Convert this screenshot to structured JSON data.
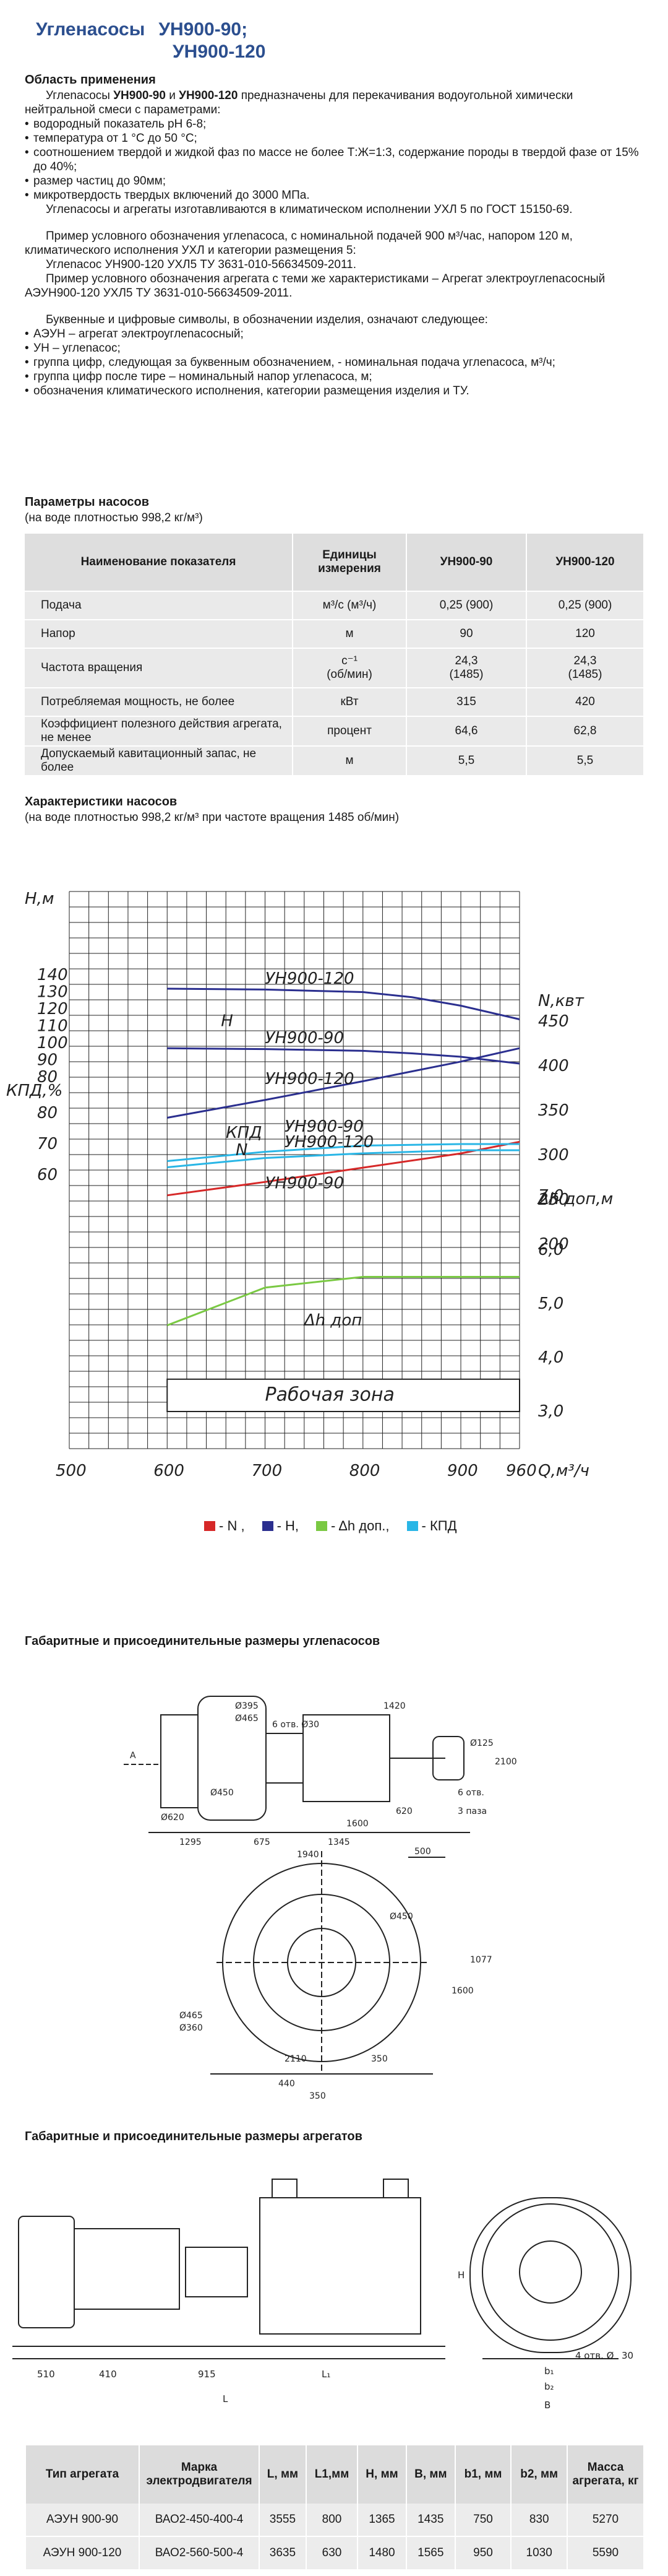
{
  "title": {
    "line1a": "Угленасосы",
    "line1b": "УН900-90;",
    "line2": "УН900-120"
  },
  "application": {
    "heading": "Область применения",
    "intro_pre": "Углеnасосы",
    "bold1": "УН900-90",
    "and": "и",
    "bold2": "УН900-120",
    "intro_post": "предназначены для перекачивания водоугольной химически нейтральной смеси с параметрами:",
    "bullets": [
      "водородный показатель pH 6-8;",
      "температура от 1 °С до 50 °С;",
      "соотношением твердой и жидкой фаз по массе не более Т:Ж=1:3, содержание породы в твердой фазе от 15% до 40%;",
      "размер частиц до 90мм;",
      "микротвердость твердых включений до 3000 МПа."
    ],
    "climate": "Углеnасосы и агрегаты изготавливаются в климатическом исполнении УХЛ 5 по ГОСТ 15150-69.",
    "example1": "Пример условного обозначения углеnасоса, с номинальной подачей 900 м³/час, напором 120 м, климатического исполнения УХЛ и категории размещения 5:",
    "example1_code": "Углеnасос УН900-120 УХЛ5 ТУ 3631-010-56634509-2011.",
    "example2": "Пример условного обозначения агрегата с теми же характеристиками – Агрегат электроуглеnасосный АЭУН900-120 УХЛ5 ТУ 3631-010-56634509-2011.",
    "symbols_intro": "Буквенные и цифровые символы, в обозначении изделия, означают следующее:",
    "symbols": [
      "АЭУН – агрегат электроуглеnасосный;",
      "УН – углеnасос;",
      "группа цифр, следующая за буквенным обозначением, - номинальная подача углеnасоса, м³/ч;",
      "группа цифр после тире – номинальный напор углеnасоса, м;",
      "обозначения климатического исполнения, категории размещения изделия и ТУ."
    ]
  },
  "params": {
    "heading": "Параметры насосов",
    "subheading": "(на воде плотностью 998,2 кг/м³)",
    "headers": [
      "Наименование показателя",
      "Единицы измерения",
      "УН900-90",
      "УН900-120"
    ],
    "rows": [
      {
        "name": "Подача",
        "unit": "м³/с (м³/ч)",
        "v1": "0,25 (900)",
        "v2": "0,25 (900)"
      },
      {
        "name": "Напор",
        "unit": "м",
        "v1": "90",
        "v2": "120"
      },
      {
        "name": "Частота вращения",
        "unit": "с⁻¹",
        "unit2": "(об/мин)",
        "v1": "24,3",
        "v1b": "(1485)",
        "v2": "24,3",
        "v2b": "(1485)"
      },
      {
        "name": "Потребляемая мощность, не более",
        "unit": "кВт",
        "v1": "315",
        "v2": "420"
      },
      {
        "name": "Коэффициент полезного действия агрегата, не менее",
        "unit": "процент",
        "v1": "64,6",
        "v2": "62,8"
      },
      {
        "name": "Допускаемый кавитационный запас, не более",
        "unit": "м",
        "v1": "5,5",
        "v2": "5,5"
      }
    ]
  },
  "characteristics": {
    "heading": "Характеристики насосов",
    "subheading": "(на воде плотностью 998,2 кг/м³ при частоте вращения 1485 об/мин)"
  },
  "chart_data": {
    "type": "line",
    "xlabel": "Q,м³/ч",
    "x_ticks": [
      500,
      600,
      700,
      800,
      900,
      960
    ],
    "axes": {
      "H": {
        "label": "Н,м",
        "ticks": [
          80,
          90,
          100,
          110,
          120,
          130,
          140
        ]
      },
      "N": {
        "label": "N,квт",
        "ticks": [
          200,
          250,
          300,
          350,
          400,
          450
        ]
      },
      "KPD": {
        "label": "КПД,%",
        "ticks": [
          60,
          70,
          80
        ]
      },
      "dh": {
        "label": "Δh доп,м",
        "ticks": [
          3.0,
          4.0,
          5.0,
          6.0,
          7.0
        ]
      }
    },
    "working_zone_label": "Рабочая зона",
    "series": [
      {
        "name": "УН900-120",
        "kind": "H",
        "color": "#2b2f8f",
        "x": [
          600,
          700,
          800,
          850,
          900,
          960
        ],
        "y": [
          132,
          131.5,
          130,
          127,
          122,
          114
        ]
      },
      {
        "name": "УН900-90",
        "kind": "H",
        "color": "#2b2f8f",
        "x": [
          600,
          700,
          800,
          850,
          900,
          960
        ],
        "y": [
          97,
          96.5,
          95.5,
          94,
          92,
          88
        ]
      },
      {
        "name": "УН900-120",
        "kind": "N",
        "color": "#2b2f8f",
        "x": [
          600,
          700,
          800,
          900,
          960
        ],
        "y": [
          342,
          362,
          383,
          405,
          420
        ]
      },
      {
        "name": "УН900-90",
        "kind": "N",
        "color": "#d62828",
        "x": [
          600,
          700,
          800,
          900,
          960
        ],
        "y": [
          255,
          270,
          286,
          302,
          315
        ]
      },
      {
        "name": "УН900-90",
        "kind": "KPD",
        "color": "#29b6e6",
        "x": [
          600,
          700,
          800,
          900,
          960
        ],
        "y": [
          64.5,
          67.5,
          69.5,
          70,
          70
        ]
      },
      {
        "name": "УН900-120",
        "kind": "KPD",
        "color": "#29b6e6",
        "x": [
          600,
          700,
          800,
          900,
          960
        ],
        "y": [
          62.5,
          65.5,
          67,
          68,
          68
        ]
      },
      {
        "name": "Δh доп",
        "kind": "dh",
        "color": "#7ac943",
        "x": [
          600,
          700,
          800,
          900,
          960
        ],
        "y": [
          4.6,
          5.3,
          5.5,
          5.5,
          5.5
        ]
      }
    ],
    "curve_labels": [
      "УН900-120",
      "Н",
      "УН900-90",
      "УН900-120",
      "N",
      "УН900-90",
      "КПД",
      "УН900-90",
      "УН900-120",
      "Δh доп"
    ],
    "legend": [
      {
        "label": "- N ,",
        "color": "#d62828"
      },
      {
        "label": "- Н,",
        "color": "#2b2f8f"
      },
      {
        "label": "- Δh доп.,",
        "color": "#7ac943"
      },
      {
        "label": "- КПД",
        "color": "#29b6e6"
      }
    ]
  },
  "dims_pump": {
    "heading": "Габаритные и присоединительные размеры углеnасосов",
    "labels": [
      "А",
      "Ø395",
      "Ø465",
      "Ø450",
      "6 отв. Ø30",
      "Ø620",
      "1295",
      "1940",
      "1420",
      "620",
      "6 отв.",
      "Ø125",
      "2100",
      "3 паза",
      "1345",
      "500",
      "675",
      "1600",
      "1077",
      "1600",
      "350",
      "Ø465",
      "Ø360",
      "2110",
      "350",
      "440",
      "Ø450"
    ]
  },
  "dims_unit": {
    "heading": "Габаритные и присоединительные размеры агрегатов",
    "labels": [
      "510",
      "410",
      "915",
      "L₁",
      "L",
      "Н",
      "b₁",
      "b₂",
      "В",
      "4 отв. Ø",
      "30"
    ]
  },
  "units_table": {
    "headers": [
      "Тип агрегата",
      "Марка электродвигателя",
      "L, мм",
      "L1,мм",
      "H, мм",
      "B, мм",
      "b1, мм",
      "b2, мм",
      "Масса агрегата, кг"
    ],
    "rows": [
      [
        "АЭУН 900-90",
        "ВАО2-450-400-4",
        "3555",
        "800",
        "1365",
        "1435",
        "750",
        "830",
        "5270"
      ],
      [
        "АЭУН 900-120",
        "ВАО2-560-500-4",
        "3635",
        "630",
        "1480",
        "1565",
        "950",
        "1030",
        "5590"
      ]
    ]
  }
}
